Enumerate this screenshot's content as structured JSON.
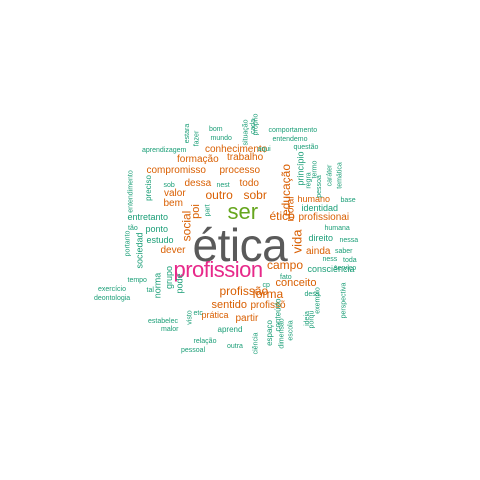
{
  "colors": {
    "xl": "#5a5a5a",
    "l": "#e7298a",
    "m": "#66a61e",
    "s": "#d95f02",
    "xs": "#1b9e77"
  },
  "words": [
    {
      "text": "ética",
      "size": "xl"
    },
    {
      "text": "profission",
      "size": "l"
    },
    {
      "text": "ser",
      "size": "m"
    },
    {
      "text": "educação",
      "size": "s"
    },
    {
      "text": "vida",
      "size": "s"
    },
    {
      "text": "social",
      "size": "s"
    },
    {
      "text": "poi",
      "size": "s"
    },
    {
      "text": "forma",
      "size": "s"
    },
    {
      "text": "campo",
      "size": "s"
    },
    {
      "text": "profissão",
      "size": "s"
    },
    {
      "text": "outro",
      "size": "s"
    },
    {
      "text": "sobr",
      "size": "s"
    },
    {
      "text": "ético",
      "size": "s"
    },
    {
      "text": "conceito",
      "size": "s"
    },
    {
      "text": "sentido",
      "size": "s"
    },
    {
      "text": "compromisso",
      "size": "s"
    },
    {
      "text": "processo",
      "size": "s"
    },
    {
      "text": "conhecimento",
      "size": "s"
    },
    {
      "text": "trabalho",
      "size": "s"
    },
    {
      "text": "formação",
      "size": "s"
    },
    {
      "text": "dessa",
      "size": "s"
    },
    {
      "text": "todo",
      "size": "s"
    },
    {
      "text": "moral",
      "size": "s"
    },
    {
      "text": "humano",
      "size": "s"
    },
    {
      "text": "bem",
      "size": "s"
    },
    {
      "text": "valor",
      "size": "s"
    },
    {
      "text": "dever",
      "size": "s"
    },
    {
      "text": "profissõ",
      "size": "s"
    },
    {
      "text": "partir",
      "size": "s"
    },
    {
      "text": "prática",
      "size": "s"
    },
    {
      "text": "ainda",
      "size": "s"
    },
    {
      "text": "profissionai",
      "size": "s"
    },
    {
      "text": "princípio",
      "size": "xs"
    },
    {
      "text": "identidad",
      "size": "xs"
    },
    {
      "text": "direito",
      "size": "xs"
    },
    {
      "text": "consciência",
      "size": "xs"
    },
    {
      "text": "entretanto",
      "size": "xs"
    },
    {
      "text": "ponto",
      "size": "xs"
    },
    {
      "text": "estudo",
      "size": "xs"
    },
    {
      "text": "sociedad",
      "size": "xs"
    },
    {
      "text": "grupo",
      "size": "xs"
    },
    {
      "text": "pode",
      "size": "xs"
    },
    {
      "text": "norma",
      "size": "xs"
    },
    {
      "text": "aprend",
      "size": "xs"
    },
    {
      "text": "conteúdo",
      "size": "xs"
    },
    {
      "text": "espaço",
      "size": "xs"
    },
    {
      "text": "preciso",
      "size": "xs"
    },
    {
      "text": "sob",
      "size": "xs"
    },
    {
      "text": "nest",
      "size": "xs"
    },
    {
      "text": "part",
      "size": "xs"
    },
    {
      "text": "aqui",
      "size": "xs"
    },
    {
      "text": "questão",
      "size": "xs"
    },
    {
      "text": "entendemo",
      "size": "xs"
    },
    {
      "text": "comportamento",
      "size": "xs"
    },
    {
      "text": "aprendizagem",
      "size": "xs"
    },
    {
      "text": "bom",
      "size": "xs"
    },
    {
      "text": "mundo",
      "size": "xs"
    },
    {
      "text": "cada",
      "size": "xs"
    },
    {
      "text": "situação",
      "size": "xs"
    },
    {
      "text": "próprio",
      "size": "xs"
    },
    {
      "text": "estara",
      "size": "xs"
    },
    {
      "text": "fazer",
      "size": "xs"
    },
    {
      "text": "termo",
      "size": "xs"
    },
    {
      "text": "regra",
      "size": "xs"
    },
    {
      "text": "pessoa",
      "size": "xs"
    },
    {
      "text": "caráter",
      "size": "xs"
    },
    {
      "text": "temática",
      "size": "xs"
    },
    {
      "text": "base",
      "size": "xs"
    },
    {
      "text": "saber",
      "size": "xs"
    },
    {
      "text": "toda",
      "size": "xs"
    },
    {
      "text": "serviço",
      "size": "xs"
    },
    {
      "text": "humana",
      "size": "xs"
    },
    {
      "text": "nessa",
      "size": "xs"
    },
    {
      "text": "ness",
      "size": "xs"
    },
    {
      "text": "fato",
      "size": "xs"
    },
    {
      "text": "dess",
      "size": "xs"
    },
    {
      "text": "exemplo",
      "size": "xs"
    },
    {
      "text": "perspectiva",
      "size": "xs"
    },
    {
      "text": "porqu",
      "size": "xs"
    },
    {
      "text": "ideia",
      "size": "xs"
    },
    {
      "text": "escola",
      "size": "xs"
    },
    {
      "text": "dimensão",
      "size": "xs"
    },
    {
      "text": "ciência",
      "size": "xs"
    },
    {
      "text": "outra",
      "size": "xs"
    },
    {
      "text": "relação",
      "size": "xs"
    },
    {
      "text": "pessoal",
      "size": "xs"
    },
    {
      "text": "malor",
      "size": "xs"
    },
    {
      "text": "visto",
      "size": "xs"
    },
    {
      "text": "etc",
      "size": "xs"
    },
    {
      "text": "estabelec",
      "size": "xs"
    },
    {
      "text": "deontologia",
      "size": "xs"
    },
    {
      "text": "exercício",
      "size": "xs"
    },
    {
      "text": "tal",
      "size": "xs"
    },
    {
      "text": "tempo",
      "size": "xs"
    },
    {
      "text": "portanto",
      "size": "xs"
    },
    {
      "text": "tão",
      "size": "xs"
    },
    {
      "text": "entendimento",
      "size": "xs"
    },
    {
      "text": "cp",
      "size": "xs"
    }
  ]
}
